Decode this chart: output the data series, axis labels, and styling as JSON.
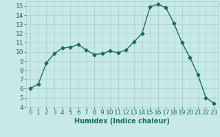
{
  "x": [
    0,
    1,
    2,
    3,
    4,
    5,
    6,
    7,
    8,
    9,
    10,
    11,
    12,
    13,
    14,
    15,
    16,
    17,
    18,
    19,
    20,
    21,
    22,
    23
  ],
  "y": [
    6.0,
    6.5,
    8.8,
    9.8,
    10.4,
    10.5,
    10.8,
    10.2,
    9.7,
    9.8,
    10.1,
    9.9,
    10.2,
    11.1,
    12.0,
    14.9,
    15.2,
    14.8,
    13.1,
    11.0,
    9.4,
    7.5,
    5.0,
    4.4
  ],
  "line_color": "#1a6b5e",
  "marker": "D",
  "markersize": 2.5,
  "linewidth": 1.0,
  "bg_color": "#c8eae6",
  "grid_color": "#a8ceca",
  "xlabel": "Humidex (Indice chaleur)",
  "xlabel_fontsize": 7,
  "tick_fontsize": 6.5,
  "xlim": [
    -0.5,
    23.5
  ],
  "ylim": [
    4,
    15.5
  ],
  "yticks": [
    4,
    5,
    6,
    7,
    8,
    9,
    10,
    11,
    12,
    13,
    14,
    15
  ],
  "xticks": [
    0,
    1,
    2,
    3,
    4,
    5,
    6,
    7,
    8,
    9,
    10,
    11,
    12,
    13,
    14,
    15,
    16,
    17,
    18,
    19,
    20,
    21,
    22,
    23
  ]
}
